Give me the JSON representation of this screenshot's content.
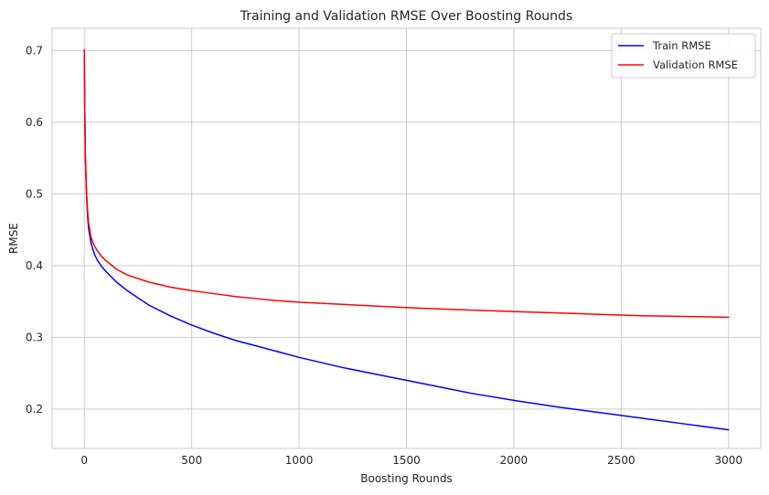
{
  "chart_data": {
    "type": "line",
    "title": "Training and Validation RMSE Over Boosting Rounds",
    "xlabel": "Boosting Rounds",
    "ylabel": "RMSE",
    "xlim": [
      -150,
      3150
    ],
    "ylim": [
      0.145,
      0.731
    ],
    "xticks": [
      0,
      500,
      1000,
      1500,
      2000,
      2500,
      3000
    ],
    "xtick_labels": [
      "0",
      "500",
      "1000",
      "1500",
      "2000",
      "2500",
      "3000"
    ],
    "yticks": [
      0.2,
      0.3,
      0.4,
      0.5,
      0.6,
      0.7
    ],
    "ytick_labels": [
      "0.2",
      "0.3",
      "0.4",
      "0.5",
      "0.6",
      "0.7"
    ],
    "grid": true,
    "legend_position": "top-right",
    "series": [
      {
        "name": "Train RMSE",
        "color": "#0000ff",
        "x": [
          0,
          2,
          5,
          10,
          15,
          20,
          30,
          40,
          50,
          60,
          80,
          100,
          150,
          200,
          300,
          400,
          500,
          600,
          700,
          800,
          900,
          1000,
          1200,
          1400,
          1600,
          1800,
          2000,
          2200,
          2400,
          2600,
          2800,
          3000
        ],
        "values": [
          0.701,
          0.62,
          0.55,
          0.5,
          0.47,
          0.452,
          0.433,
          0.422,
          0.414,
          0.408,
          0.399,
          0.392,
          0.377,
          0.365,
          0.345,
          0.33,
          0.317,
          0.306,
          0.296,
          0.288,
          0.28,
          0.272,
          0.258,
          0.246,
          0.234,
          0.222,
          0.212,
          0.203,
          0.195,
          0.187,
          0.179,
          0.171
        ]
      },
      {
        "name": "Validation RMSE",
        "color": "#ff0000",
        "x": [
          0,
          2,
          5,
          10,
          15,
          20,
          30,
          40,
          50,
          60,
          80,
          100,
          150,
          200,
          300,
          400,
          500,
          600,
          700,
          800,
          900,
          1000,
          1200,
          1400,
          1600,
          1800,
          2000,
          2200,
          2400,
          2600,
          2800,
          3000
        ],
        "values": [
          0.701,
          0.62,
          0.553,
          0.505,
          0.477,
          0.46,
          0.441,
          0.432,
          0.426,
          0.421,
          0.413,
          0.407,
          0.395,
          0.387,
          0.377,
          0.37,
          0.365,
          0.361,
          0.357,
          0.354,
          0.351,
          0.349,
          0.346,
          0.343,
          0.34,
          0.338,
          0.336,
          0.334,
          0.332,
          0.33,
          0.329,
          0.328
        ]
      }
    ]
  },
  "colors": {
    "background": "#ffffff",
    "grid": "#cccccc",
    "axes_border": "#cccccc",
    "text": "#262626"
  }
}
